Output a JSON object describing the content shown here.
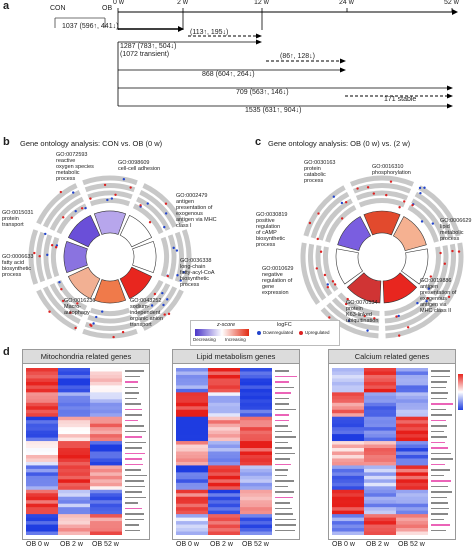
{
  "panel_a": {
    "label": "a",
    "con": "CON",
    "ob": "OB",
    "timepoints": [
      "0 w",
      "2 w",
      "12 w",
      "24 w",
      "52 w"
    ],
    "n_con_ob": "1037 (596↑, 441↓)",
    "n_0_2": "(113↑, 195↓)",
    "n_0_12a": "1287 (783↑, 504↓)",
    "n_transient": "(1072 transient)",
    "n_12_24": "(86↑, 128↓)",
    "n_0_24": "868 (604↑, 264↓)",
    "n_0_52": "709 (563↑, 146↓)",
    "n_stable": "171 stable",
    "n_total": "1535 (631↑, 904↓)"
  },
  "panel_b": {
    "label": "b",
    "title": "Gene ontology analysis: CON vs. OB (0 w)",
    "terms": [
      "GO:0072593\nreactive\noxygen species\nmetabolic\nprocess",
      "GO:0098609\ncell-cell adhesion",
      "GO:0002479\nantigen\npresentation of\nexogenous\nantigen via MHC\nclass I",
      "GO:0036338\nlong-chain\nfatty-acyl-CoA\nbiosynthetic\nprocess",
      "GO:0043252\nsodium-\nindependent\norganic anion\ntransport",
      "GO:0016236\nMacro-\nautophagy",
      "GO:0006633\nfatty acid\nbiosynthetic\nprocess",
      "GO:0015031\nprotein\ntransport"
    ]
  },
  "panel_c": {
    "label": "c",
    "title": "Gene ontology analysis: OB (0 w) vs. (2 w)",
    "terms": [
      "GO:0030163\nprotein\ncatabolic\nprocess",
      "GO:0016310\nphosphorylation",
      "GO:0006629\nlipid\nmetabolic\nprocess",
      "GO:0019886\nantigen\npresentation of\nexogenous\nantigen via\nMHC class II",
      "GO:0070534\nprotein\nK63-linked\nubiquitination",
      "GO:0010629\nnegative\nregulation of\ngene\nexpression",
      "GO:0030819\npositive\nregulation\nof cAMP\nbiosynthetic\nprocess"
    ]
  },
  "legend": {
    "zscore": "z-score",
    "logfc": "logFC",
    "decreasing": "Decreasing",
    "increasing": "Increasing",
    "down": "Downregulated",
    "up": "Upregulated"
  },
  "panel_d": {
    "label": "d",
    "heatmaps": [
      {
        "title": "Mitochondria related genes",
        "xlabels": [
          "OB 0 w",
          "OB 2 w",
          "OB 52 w"
        ]
      },
      {
        "title": "Lipid metabolism genes",
        "xlabels": [
          "OB 0 w",
          "OB 2 w",
          "OB 52 w"
        ]
      },
      {
        "title": "Calcium related genes",
        "xlabels": [
          "OB 0 w",
          "OB 2 w",
          "OB 52 w"
        ]
      }
    ]
  },
  "colors": {
    "red": "#e8261f",
    "blue": "#1f3fe0",
    "purple": "#6a4fd8",
    "orange": "#f07a4a",
    "ring": "#c8c8c8"
  }
}
